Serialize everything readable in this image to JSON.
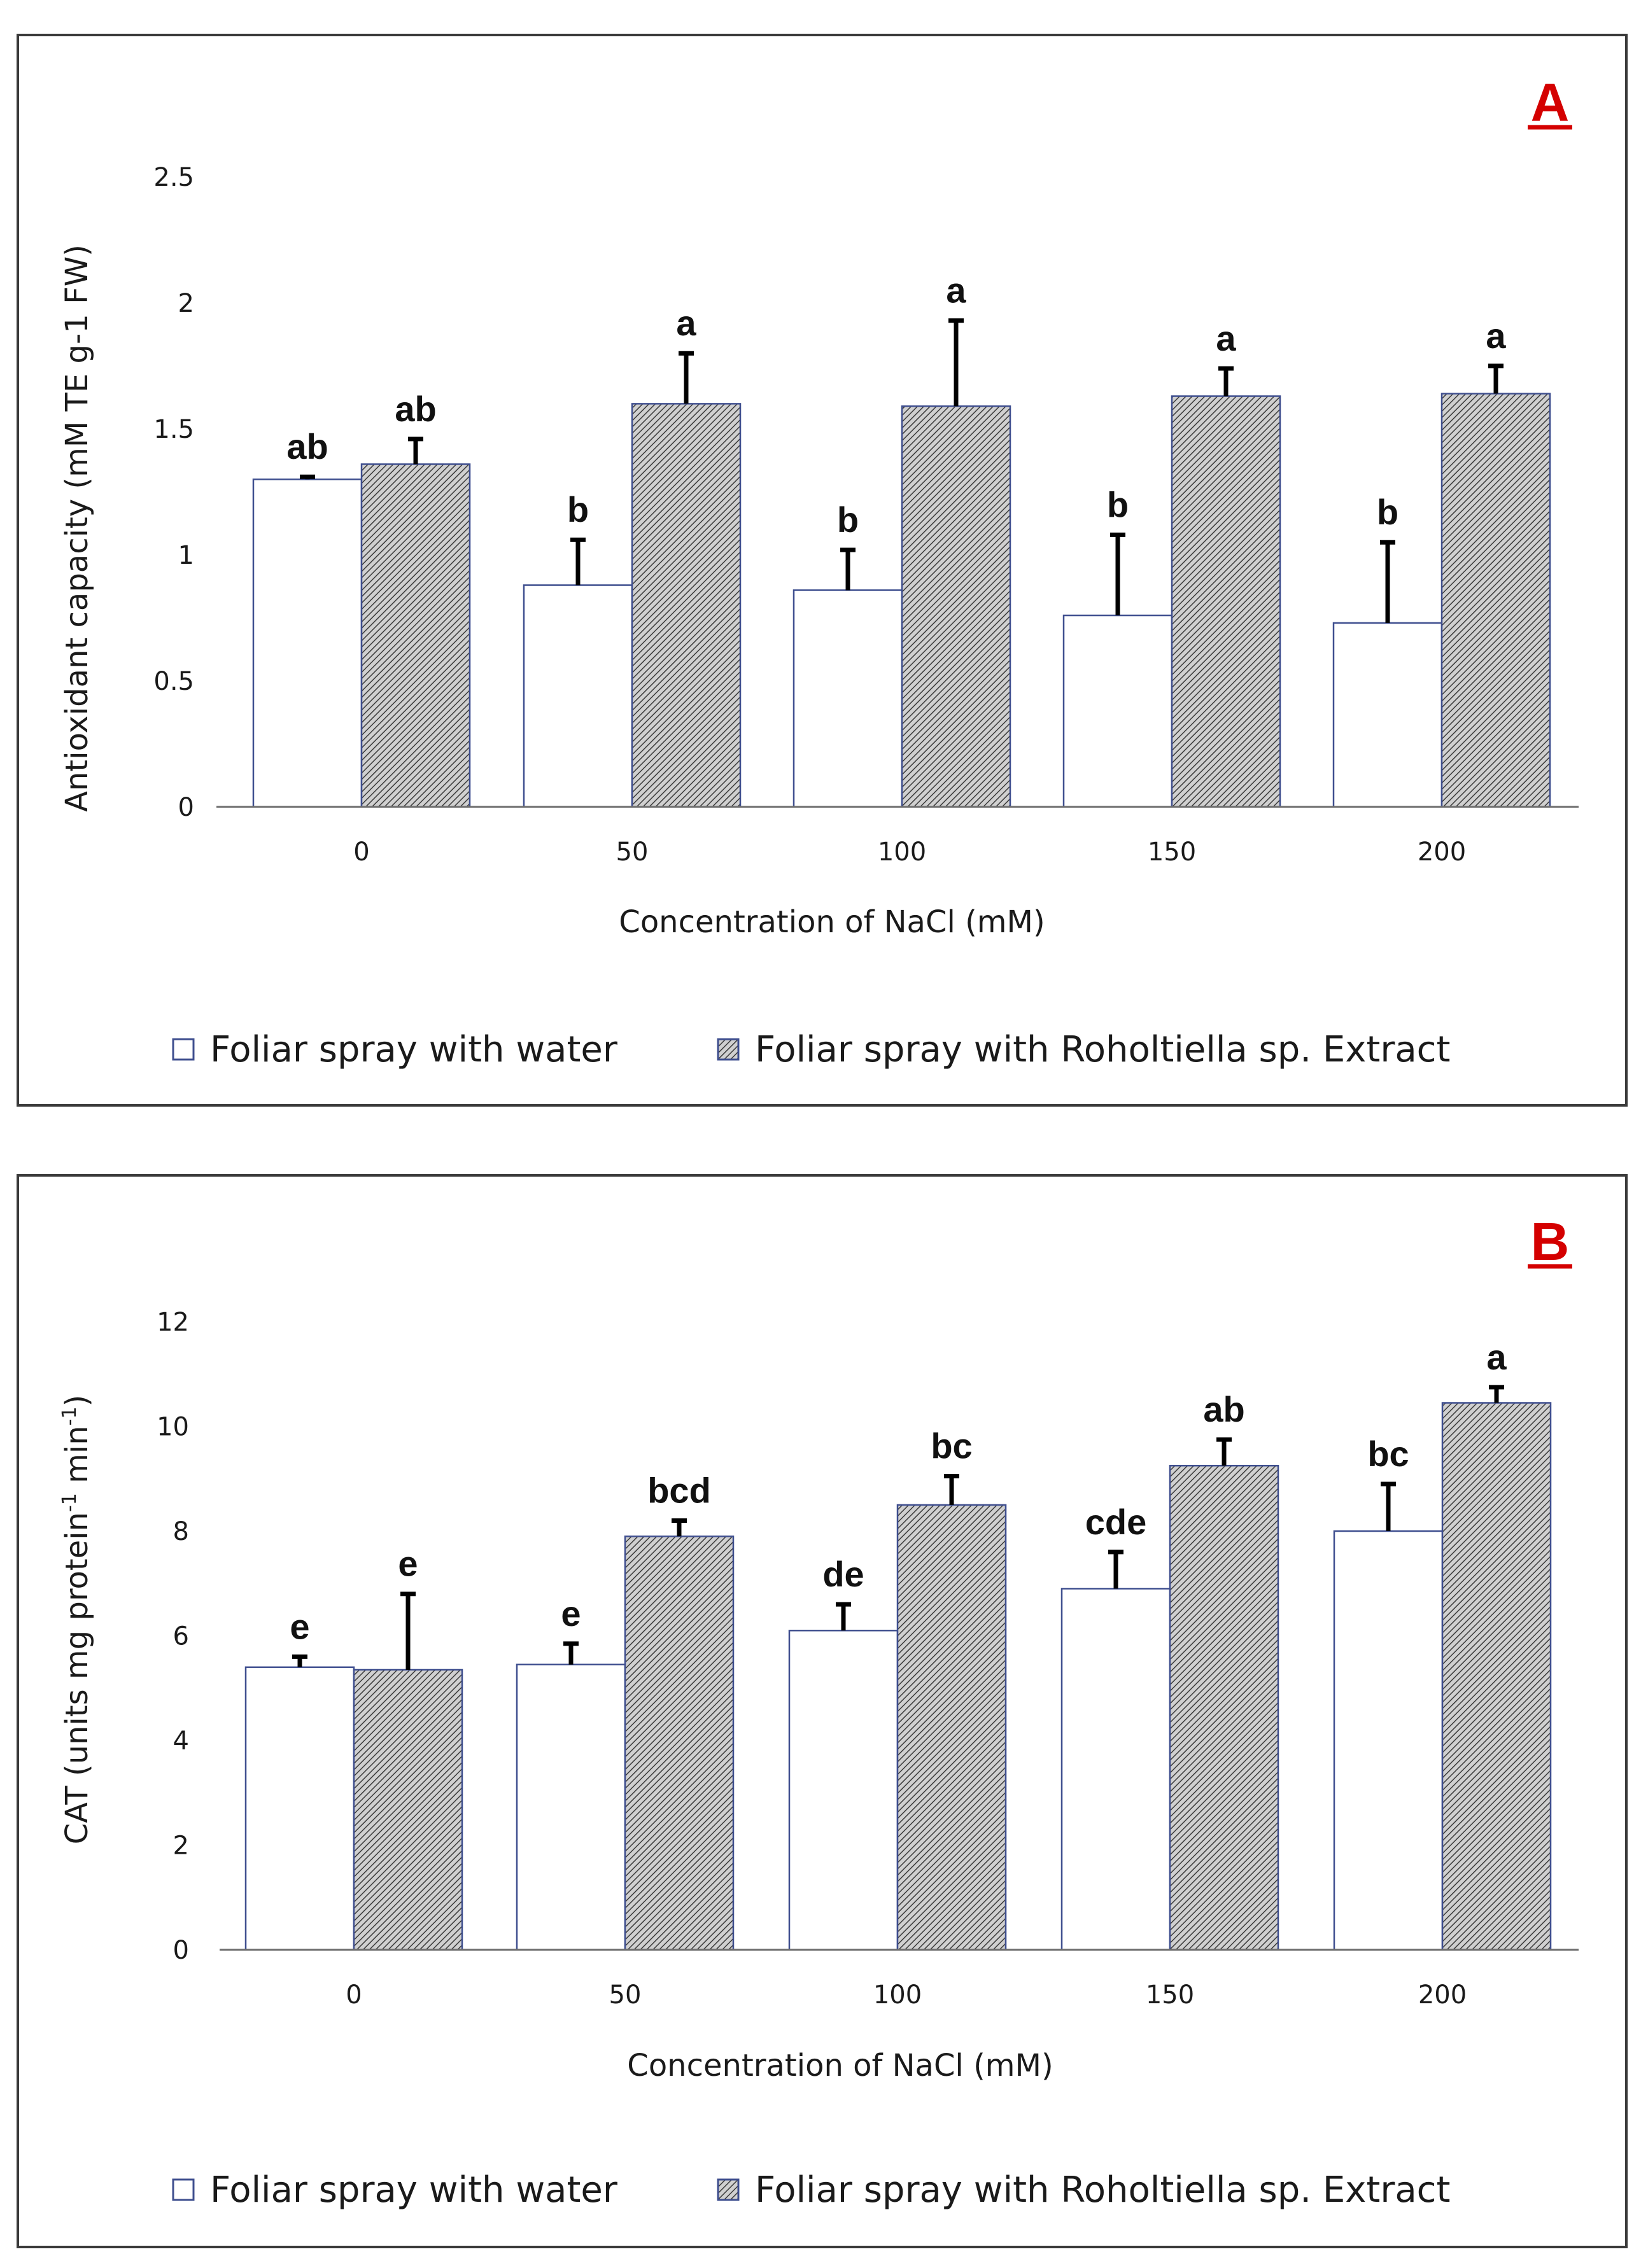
{
  "legend": {
    "water": "Foliar spray with water",
    "extract": "Foliar spray with Roholtiella sp. Extract"
  },
  "colors": {
    "panel_letter": "#d40000",
    "bar_outline": "#3f4f8f",
    "error_bar": "#000000"
  },
  "chart_data": [
    {
      "panel": "A",
      "type": "bar",
      "ylabel": "Antioxidant capacity (mM TE g-1 FW)",
      "xlabel": "Concentration of NaCl (mM)",
      "ylim": [
        0,
        2.5
      ],
      "yticks": [
        0,
        0.5,
        1,
        1.5,
        2,
        2.5
      ],
      "ytick_labels": [
        "0",
        "0.5",
        "1",
        "1.5",
        "2",
        "2.5"
      ],
      "categories": [
        "0",
        "50",
        "100",
        "150",
        "200"
      ],
      "series": [
        {
          "name": "Foliar spray with water",
          "values": [
            1.3,
            0.88,
            0.86,
            0.76,
            0.73
          ],
          "errors": [
            0.01,
            0.18,
            0.16,
            0.32,
            0.32
          ],
          "letters": [
            "ab",
            "b",
            "b",
            "b",
            "b"
          ]
        },
        {
          "name": "Foliar spray with Roholtiella sp. Extract",
          "values": [
            1.36,
            1.6,
            1.59,
            1.63,
            1.64
          ],
          "errors": [
            0.1,
            0.2,
            0.34,
            0.11,
            0.11
          ],
          "letters": [
            "ab",
            "a",
            "a",
            "a",
            "a"
          ]
        }
      ]
    },
    {
      "panel": "B",
      "type": "bar",
      "ylabel_main": "CAT  (units mg protein",
      "ylabel_sup1": "-1",
      "ylabel_mid": " min",
      "ylabel_sup2": "-1",
      "ylabel_end": ")",
      "xlabel": "Concentration of NaCl (mM)",
      "ylim": [
        0,
        12
      ],
      "yticks": [
        0,
        2,
        4,
        6,
        8,
        10,
        12
      ],
      "ytick_labels": [
        "0",
        "2",
        "4",
        "6",
        "8",
        "10",
        "12"
      ],
      "categories": [
        "0",
        "50",
        "100",
        "150",
        "200"
      ],
      "series": [
        {
          "name": "Foliar spray with water",
          "values": [
            5.4,
            5.45,
            6.1,
            6.9,
            8.0
          ],
          "errors": [
            0.2,
            0.4,
            0.5,
            0.7,
            0.9
          ],
          "letters": [
            "e",
            "e",
            "de",
            "cde",
            "bc"
          ]
        },
        {
          "name": "Foliar spray with Roholtiella sp. Extract",
          "values": [
            5.35,
            7.9,
            8.5,
            9.25,
            10.45
          ],
          "errors": [
            1.45,
            0.3,
            0.55,
            0.5,
            0.3
          ],
          "letters": [
            "e",
            "bcd",
            "bc",
            "ab",
            "a"
          ]
        }
      ]
    }
  ]
}
